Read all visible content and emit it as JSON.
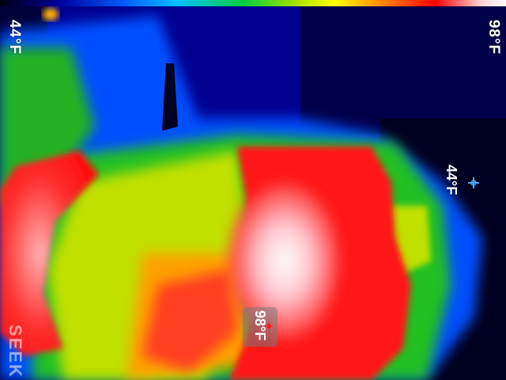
{
  "scale": {
    "min_label": "44°F",
    "max_label": "98°F"
  },
  "spots": {
    "cold_label": "44°F",
    "hot_label": "98°F"
  },
  "brand": {
    "logo_text": "SEEK"
  },
  "colors": {
    "cold": "#00008a",
    "cool": "#0050ff",
    "mid": "#20c020",
    "warm": "#ffff00",
    "hot": "#ff2020",
    "hottest": "#ffffff"
  }
}
